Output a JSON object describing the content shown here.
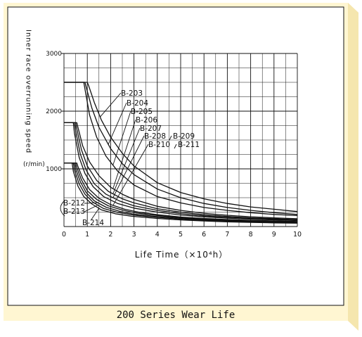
{
  "caption": "200 Series Wear Life",
  "colors": {
    "frame_fill": "#fff6d2",
    "frame_side": "#f5e6ae",
    "panel": "#ffffff",
    "ink": "#111111"
  },
  "chart_data": {
    "type": "line",
    "title": "",
    "xlabel": "Life Time（×10⁴h）",
    "ylabel": "Inner race overrunning speed",
    "yunit": "(r/min)",
    "xlim": [
      0,
      10
    ],
    "ylim": [
      0,
      3000
    ],
    "xticks": [
      0,
      1,
      2,
      3,
      4,
      5,
      6,
      7,
      8,
      9,
      10
    ],
    "yticks": [
      1000,
      2000,
      3000
    ],
    "grid": true,
    "x_grid_step": 0.5,
    "y_grid_step": 250,
    "series": [
      {
        "name": "B-203",
        "x": [
          0,
          1.0,
          1.05,
          1.3,
          1.6,
          2,
          2.5,
          3,
          4,
          5,
          6,
          7,
          8,
          9,
          10
        ],
        "y": [
          2500,
          2500,
          2450,
          2150,
          1850,
          1550,
          1270,
          1050,
          760,
          590,
          480,
          400,
          340,
          300,
          260
        ]
      },
      {
        "name": "B-204",
        "x": [
          0,
          0.9,
          0.95,
          1.2,
          1.5,
          2,
          2.5,
          3,
          4,
          5,
          6,
          7,
          8,
          9,
          10
        ],
        "y": [
          2500,
          2500,
          2420,
          2050,
          1720,
          1350,
          1090,
          900,
          650,
          500,
          400,
          330,
          280,
          240,
          210
        ]
      },
      {
        "name": "B-205",
        "x": [
          0,
          0.85,
          0.9,
          1.1,
          1.4,
          1.8,
          2.3,
          3,
          4,
          5,
          6,
          7,
          8,
          9,
          10
        ],
        "y": [
          2500,
          2500,
          2380,
          1930,
          1550,
          1220,
          960,
          720,
          520,
          410,
          330,
          280,
          240,
          210,
          190
        ]
      },
      {
        "name": "B-206",
        "x": [
          0,
          0.55,
          0.6,
          0.8,
          1.1,
          1.5,
          2,
          2.5,
          3,
          4,
          5,
          6,
          7,
          8,
          9,
          10
        ],
        "y": [
          1800,
          1800,
          1720,
          1400,
          1120,
          880,
          680,
          560,
          470,
          350,
          280,
          230,
          195,
          170,
          150,
          135
        ]
      },
      {
        "name": "B-207",
        "x": [
          0,
          0.5,
          0.55,
          0.75,
          1.0,
          1.4,
          1.9,
          2.5,
          3,
          4,
          5,
          6,
          7,
          8,
          9,
          10
        ],
        "y": [
          1800,
          1800,
          1690,
          1330,
          1050,
          800,
          610,
          480,
          410,
          310,
          250,
          205,
          175,
          150,
          135,
          120
        ]
      },
      {
        "name": "B-208",
        "x": [
          0,
          0.45,
          0.5,
          0.7,
          0.95,
          1.3,
          1.8,
          2.4,
          3,
          4,
          5,
          6,
          7,
          8,
          9,
          10
        ],
        "y": [
          1800,
          1800,
          1660,
          1260,
          980,
          740,
          560,
          440,
          360,
          280,
          225,
          185,
          160,
          140,
          125,
          112
        ]
      },
      {
        "name": "B-209",
        "x": [
          0,
          0.4,
          0.45,
          0.65,
          0.9,
          1.25,
          1.7,
          2.3,
          3,
          4,
          5,
          6,
          7,
          8,
          9,
          10
        ],
        "y": [
          1800,
          1800,
          1620,
          1200,
          920,
          690,
          520,
          400,
          320,
          250,
          200,
          168,
          145,
          128,
          115,
          104
        ]
      },
      {
        "name": "B-210",
        "x": [
          0,
          0.55,
          0.6,
          0.8,
          1.1,
          1.5,
          2,
          2.6,
          3.2,
          4,
          5,
          6,
          7,
          8,
          9,
          10
        ],
        "y": [
          1100,
          1100,
          1040,
          840,
          640,
          490,
          380,
          300,
          250,
          205,
          165,
          140,
          122,
          108,
          97,
          88
        ]
      },
      {
        "name": "B-211",
        "x": [
          0,
          0.5,
          0.55,
          0.75,
          1.0,
          1.4,
          1.9,
          2.5,
          3.1,
          4,
          5,
          6,
          7,
          8,
          9,
          10
        ],
        "y": [
          1100,
          1100,
          1020,
          810,
          620,
          470,
          360,
          285,
          235,
          190,
          152,
          128,
          112,
          100,
          90,
          82
        ]
      },
      {
        "name": "B-212",
        "x": [
          0,
          0.45,
          0.5,
          0.7,
          0.95,
          1.3,
          1.8,
          2.4,
          3,
          4,
          5,
          6,
          7,
          8,
          9,
          10
        ],
        "y": [
          1100,
          1100,
          1000,
          780,
          590,
          445,
          335,
          262,
          215,
          172,
          140,
          118,
          102,
          90,
          80,
          72
        ]
      },
      {
        "name": "B-213",
        "x": [
          0,
          0.4,
          0.45,
          0.65,
          0.9,
          1.25,
          1.7,
          2.3,
          3,
          4,
          5,
          6,
          7,
          8,
          9,
          10
        ],
        "y": [
          1100,
          1100,
          980,
          740,
          560,
          420,
          312,
          245,
          198,
          158,
          128,
          107,
          92,
          81,
          72,
          65
        ]
      },
      {
        "name": "B-214",
        "x": [
          0,
          0.35,
          0.4,
          0.6,
          0.85,
          1.2,
          1.6,
          2.2,
          2.9,
          4,
          5,
          6,
          7,
          8,
          9,
          10
        ],
        "y": [
          1100,
          1100,
          960,
          700,
          520,
          390,
          290,
          222,
          178,
          140,
          115,
          96,
          82,
          72,
          64,
          58
        ]
      }
    ]
  }
}
